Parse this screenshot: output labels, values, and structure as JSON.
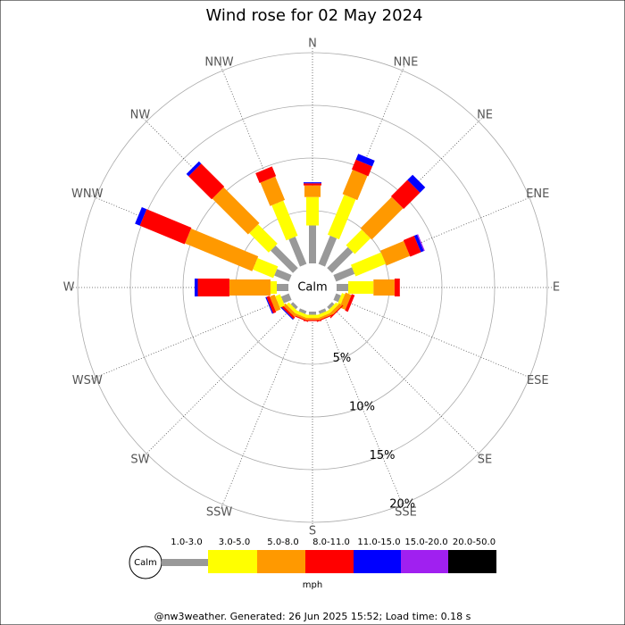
{
  "chart_data": {
    "type": "windrose",
    "title": "Wind rose for 02 May 2024",
    "categories": [
      "N",
      "NNE",
      "NE",
      "ENE",
      "E",
      "ESE",
      "SE",
      "SSE",
      "S",
      "SSW",
      "SW",
      "WSW",
      "W",
      "WNW",
      "NW",
      "NNW"
    ],
    "center_label": "Calm",
    "rlim": [
      0,
      20
    ],
    "rticks": [
      {
        "value": 5,
        "label": "5%"
      },
      {
        "value": 10,
        "label": "10%"
      },
      {
        "value": 15,
        "label": "15%"
      },
      {
        "value": 20,
        "label": "20%"
      }
    ],
    "series": [
      {
        "name": "1.0-3.0",
        "color": "#999999",
        "values": [
          3.6,
          2.9,
          2.8,
          1.9,
          1.1,
          0.5,
          0.3,
          0.3,
          0.3,
          0.3,
          0.3,
          0.8,
          1.1,
          1.5,
          3.0,
          2.8
        ]
      },
      {
        "name": "3.0-5.0",
        "color": "#ffff00",
        "values": [
          2.7,
          4.1,
          2.1,
          3.1,
          2.4,
          0.3,
          0.3,
          0.3,
          0.3,
          0.3,
          0.3,
          0.5,
          0.6,
          2.1,
          2.6,
          3.6
        ]
      },
      {
        "name": "5.0-8.0",
        "color": "#ff9900",
        "values": [
          1.1,
          2.5,
          4.2,
          2.4,
          2.0,
          0.6,
          0.3,
          0.2,
          0.2,
          0.2,
          0.3,
          0.5,
          3.9,
          6.9,
          4.8,
          2.4
        ]
      },
      {
        "name": "8.0-11.0",
        "color": "#ff0000",
        "values": [
          0.2,
          1.0,
          2.2,
          1.1,
          0.5,
          0.3,
          0.1,
          0.1,
          0.1,
          0.1,
          0.2,
          0.3,
          3.0,
          4.6,
          3.1,
          1.0
        ]
      },
      {
        "name": "11.0-15.0",
        "color": "#0000ff",
        "values": [
          0.1,
          0.6,
          0.7,
          0.3,
          0,
          0,
          0,
          0,
          0,
          0,
          0.1,
          0.1,
          0.3,
          0.5,
          0.3,
          0
        ]
      },
      {
        "name": "15.0-20.0",
        "color": "#a020f0",
        "values": [
          0,
          0,
          0,
          0.1,
          0,
          0,
          0,
          0,
          0,
          0,
          0,
          0,
          0,
          0,
          0,
          0
        ]
      },
      {
        "name": "20.0-50.0",
        "color": "#000000",
        "values": [
          0,
          0,
          0,
          0,
          0,
          0,
          0,
          0,
          0,
          0,
          0,
          0,
          0,
          0,
          0,
          0
        ]
      }
    ],
    "legend_unit": "mph",
    "footer": "@nw3weather. Generated: 26 Jun 2025 15:52; Load time: 0.18 s"
  }
}
